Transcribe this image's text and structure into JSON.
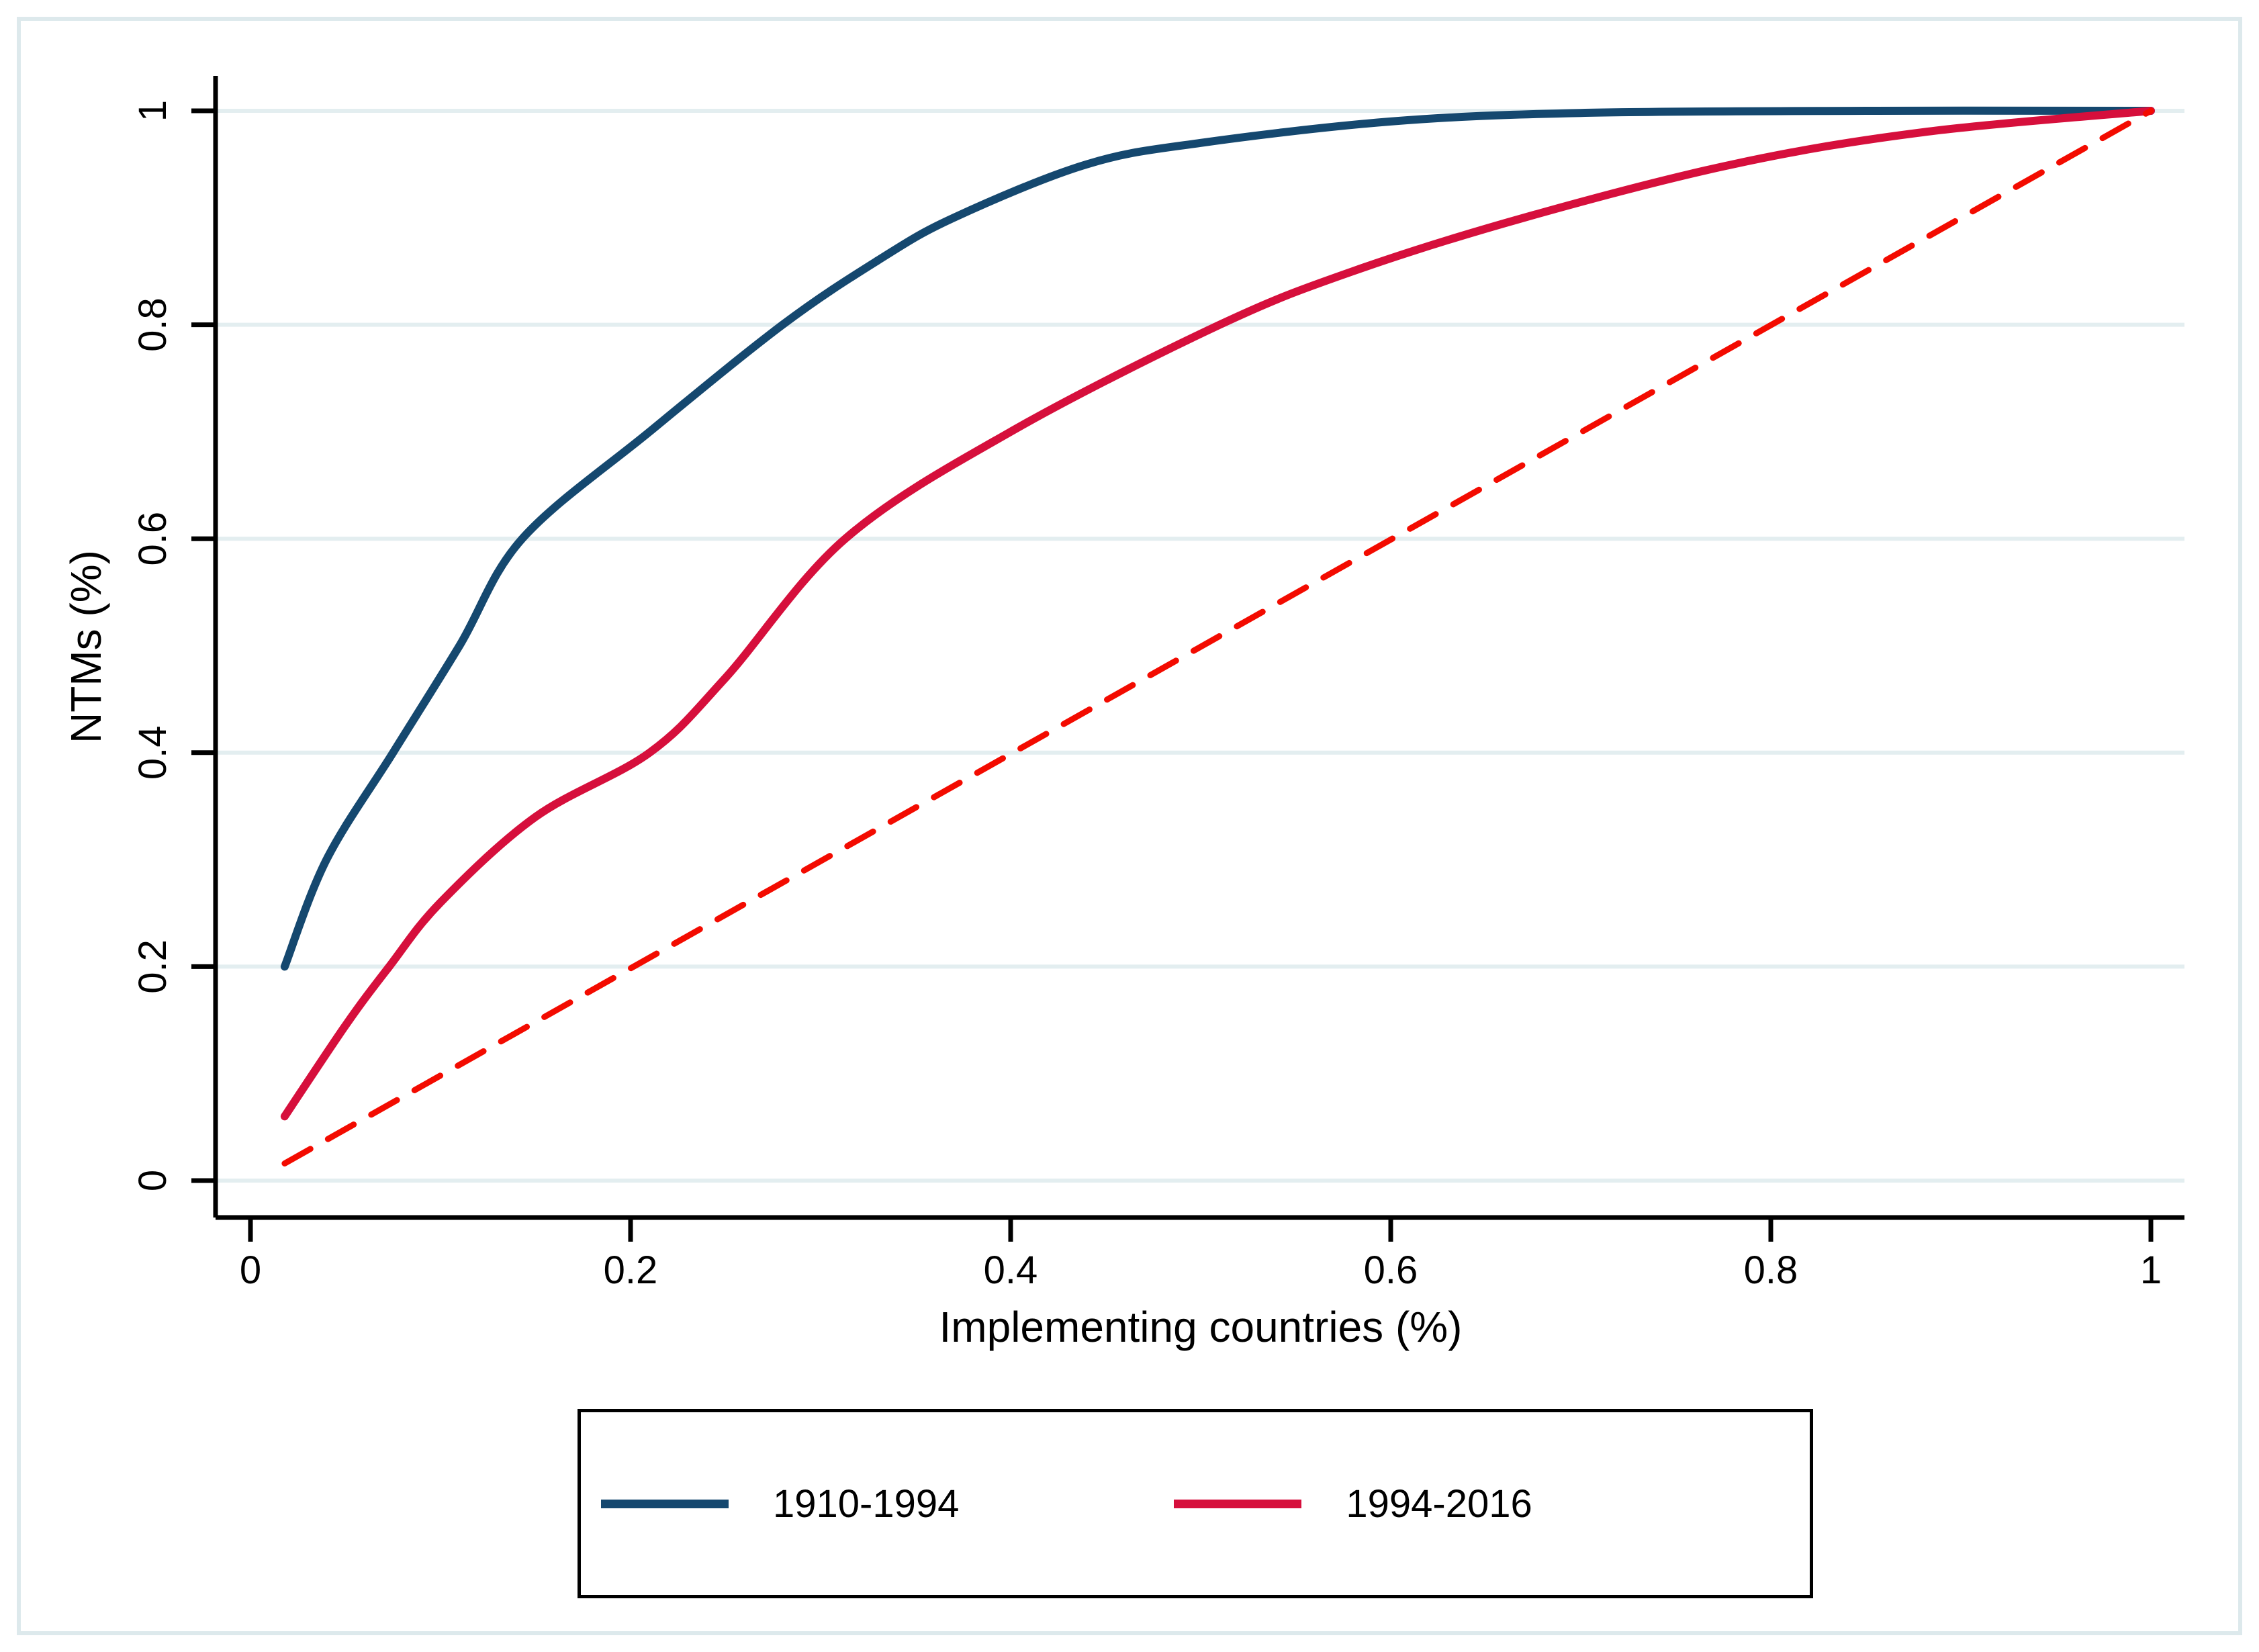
{
  "figure": {
    "background": "#ffffff",
    "frame_color": "#dde9ec"
  },
  "colors": {
    "grid": "#e3eef0",
    "axis": "#000000",
    "text": "#000000",
    "series_blue": "#15486f",
    "series_crimson": "#d60f3c",
    "equality_line_red": "#f30b00"
  },
  "axes": {
    "x_title": "Implementing countries (%)",
    "y_title": "NTMs (%)",
    "x_tick_labels": [
      "0",
      "0.2",
      "0.4",
      "0.6",
      "0.8",
      "1"
    ],
    "y_tick_labels": [
      "0",
      "0.2",
      "0.4",
      "0.6",
      "0.8",
      "1"
    ]
  },
  "legend": {
    "items": [
      {
        "label": "1910-1994",
        "color": "#15486f"
      },
      {
        "label": "1994-2016",
        "color": "#d60f3c"
      }
    ]
  },
  "chart_data": {
    "type": "line",
    "title": "",
    "xlabel": "Implementing countries (%)",
    "ylabel": "NTMs (%)",
    "xlim": [
      0,
      1
    ],
    "ylim": [
      0,
      1
    ],
    "x_ticks": [
      0,
      0.2,
      0.4,
      0.6,
      0.8,
      1
    ],
    "y_ticks": [
      0,
      0.2,
      0.4,
      0.6,
      0.8,
      1
    ],
    "grid": "horizontal-only",
    "legend_position": "bottom",
    "description": "Cumulative concentration curves of NTMs over implementing countries, with a dashed 45-degree equality line",
    "series": [
      {
        "name": "1910-1994",
        "color": "#15486f",
        "style": "solid",
        "width": 12,
        "x": [
          0.018,
          0.04,
          0.075,
          0.11,
          0.143,
          0.21,
          0.28,
          0.33,
          0.37,
          0.44,
          0.5,
          0.6,
          0.7,
          0.85,
          1.0
        ],
        "y": [
          0.2,
          0.3,
          0.4,
          0.5,
          0.6,
          0.7,
          0.8,
          0.86,
          0.9,
          0.95,
          0.97,
          0.99,
          0.998,
          1.0,
          1.0
        ]
      },
      {
        "name": "1994-2016",
        "color": "#d60f3c",
        "style": "solid",
        "width": 12,
        "x": [
          0.018,
          0.05,
          0.073,
          0.1,
          0.15,
          0.21,
          0.25,
          0.313,
          0.4,
          0.51,
          0.58,
          0.67,
          0.78,
          0.88,
          1.0
        ],
        "y": [
          0.06,
          0.145,
          0.2,
          0.26,
          0.34,
          0.4,
          0.47,
          0.6,
          0.7,
          0.8,
          0.85,
          0.9,
          0.95,
          0.98,
          1.0
        ]
      },
      {
        "name": "45-degree-line",
        "color": "#f30b00",
        "style": "dashed",
        "width": 9,
        "x": [
          0.018,
          1.0
        ],
        "y": [
          0.016,
          1.0
        ]
      }
    ]
  }
}
